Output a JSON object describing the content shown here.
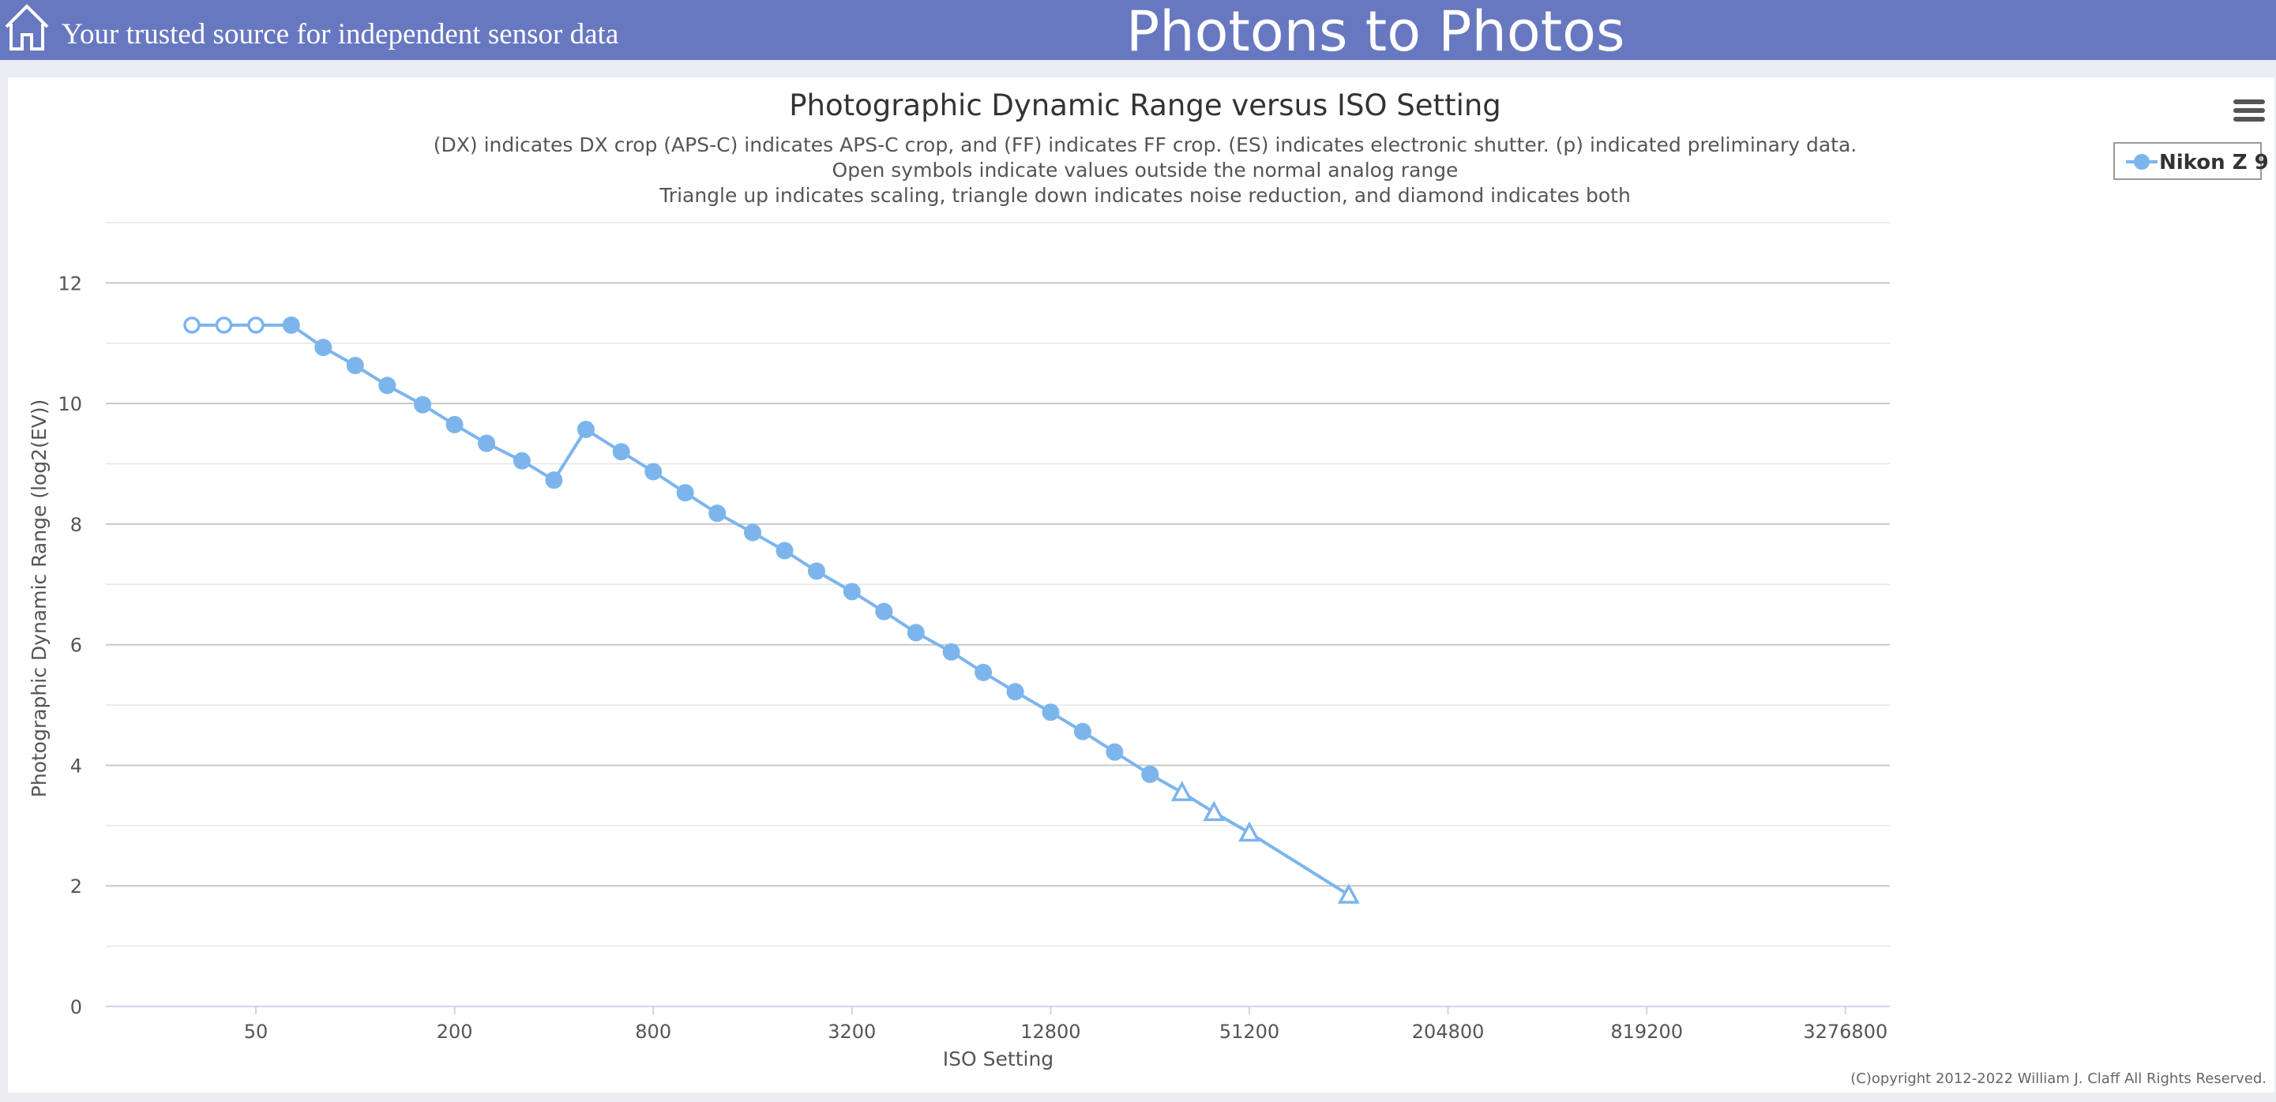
{
  "header": {
    "tagline": "Your trusted source for independent sensor data",
    "site_title": "Photons to Photos",
    "icons": {
      "home": "home-icon",
      "menu": "hamburger-menu-icon"
    }
  },
  "chart_data": {
    "type": "line",
    "title": "Photographic Dynamic Range versus ISO Setting",
    "subtitle": [
      "(DX) indicates DX crop (APS-C) indicates APS-C crop, and (FF) indicates FF crop. (ES) indicates electronic shutter. (p) indicated preliminary data.",
      "Open symbols indicate values outside the normal analog range",
      "Triangle up indicates scaling, triangle down indicates noise reduction, and diamond indicates both"
    ],
    "xlabel": "ISO Setting",
    "ylabel": "Photographic Dynamic Range (log2(EV))",
    "x_scale": "log2",
    "x_ticks": [
      "50",
      "200",
      "800",
      "3200",
      "12800",
      "51200",
      "204800",
      "819200",
      "3276800"
    ],
    "y_ticks": [
      "0",
      "2",
      "4",
      "6",
      "8",
      "10",
      "12"
    ],
    "ylim": [
      0,
      13
    ],
    "grid": true,
    "legend_position": "top-right",
    "series": [
      {
        "name": "Nikon Z 9",
        "color": "#7cb5ec",
        "points": [
          {
            "iso": 32,
            "dr": 11.3,
            "marker": "open-circle"
          },
          {
            "iso": 40,
            "dr": 11.3,
            "marker": "open-circle"
          },
          {
            "iso": 50,
            "dr": 11.3,
            "marker": "open-circle"
          },
          {
            "iso": 64,
            "dr": 11.3,
            "marker": "circle"
          },
          {
            "iso": 80,
            "dr": 10.93,
            "marker": "circle"
          },
          {
            "iso": 100,
            "dr": 10.63,
            "marker": "circle"
          },
          {
            "iso": 125,
            "dr": 10.3,
            "marker": "circle"
          },
          {
            "iso": 160,
            "dr": 9.98,
            "marker": "circle"
          },
          {
            "iso": 200,
            "dr": 9.65,
            "marker": "circle"
          },
          {
            "iso": 250,
            "dr": 9.34,
            "marker": "circle"
          },
          {
            "iso": 320,
            "dr": 9.05,
            "marker": "circle"
          },
          {
            "iso": 400,
            "dr": 8.73,
            "marker": "circle"
          },
          {
            "iso": 500,
            "dr": 9.57,
            "marker": "circle"
          },
          {
            "iso": 640,
            "dr": 9.2,
            "marker": "circle"
          },
          {
            "iso": 800,
            "dr": 8.87,
            "marker": "circle"
          },
          {
            "iso": 1000,
            "dr": 8.52,
            "marker": "circle"
          },
          {
            "iso": 1250,
            "dr": 8.18,
            "marker": "circle"
          },
          {
            "iso": 1600,
            "dr": 7.86,
            "marker": "circle"
          },
          {
            "iso": 2000,
            "dr": 7.56,
            "marker": "circle"
          },
          {
            "iso": 2500,
            "dr": 7.22,
            "marker": "circle"
          },
          {
            "iso": 3200,
            "dr": 6.88,
            "marker": "circle"
          },
          {
            "iso": 4000,
            "dr": 6.55,
            "marker": "circle"
          },
          {
            "iso": 5000,
            "dr": 6.2,
            "marker": "circle"
          },
          {
            "iso": 6400,
            "dr": 5.88,
            "marker": "circle"
          },
          {
            "iso": 8000,
            "dr": 5.54,
            "marker": "circle"
          },
          {
            "iso": 10000,
            "dr": 5.22,
            "marker": "circle"
          },
          {
            "iso": 12800,
            "dr": 4.88,
            "marker": "circle"
          },
          {
            "iso": 16000,
            "dr": 4.56,
            "marker": "circle"
          },
          {
            "iso": 20000,
            "dr": 4.22,
            "marker": "circle"
          },
          {
            "iso": 25600,
            "dr": 3.85,
            "marker": "circle"
          },
          {
            "iso": 32000,
            "dr": 3.55,
            "marker": "open-triangle-up"
          },
          {
            "iso": 40000,
            "dr": 3.22,
            "marker": "open-triangle-up"
          },
          {
            "iso": 51200,
            "dr": 2.88,
            "marker": "open-triangle-up"
          },
          {
            "iso": 102400,
            "dr": 1.85,
            "marker": "open-triangle-up"
          }
        ]
      }
    ]
  },
  "copyright": "(C)opyright 2012-2022 William J. Claff All Rights Reserved."
}
